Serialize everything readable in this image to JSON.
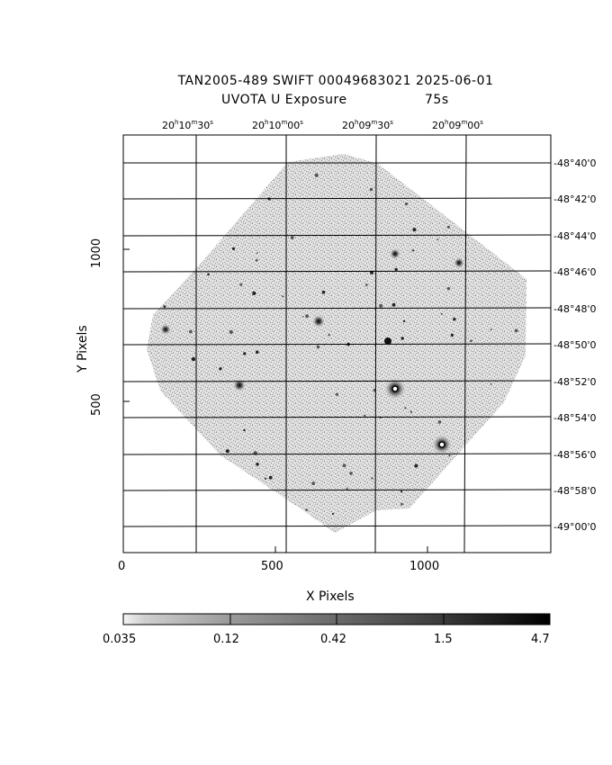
{
  "header": {
    "line1": "TAN2005-489 SWIFT 00049683021 2025-06-01",
    "line2_left": "UVOTA U Exposure",
    "line2_right": "75s"
  },
  "x_axis": {
    "label": "X Pixels",
    "ticks": [
      "0",
      "500",
      "1000"
    ]
  },
  "y_axis": {
    "label": "Y Pixels",
    "ticks": [
      "500",
      "1000"
    ]
  },
  "ra_labels": [
    {
      "h": "20",
      "m": "10",
      "s": "30"
    },
    {
      "h": "20",
      "m": "10",
      "s": "00"
    },
    {
      "h": "20",
      "m": "09",
      "s": "30"
    },
    {
      "h": "20",
      "m": "09",
      "s": "00"
    }
  ],
  "dec_labels": [
    "-48°40'0",
    "-48°42'0",
    "-48°44'0",
    "-48°46'0",
    "-48°48'0",
    "-48°50'0",
    "-48°52'0",
    "-48°54'0",
    "-48°56'0",
    "-48°58'0",
    "-49°00'0"
  ],
  "colorbar": {
    "ticks": [
      "0.035",
      "0.12",
      "0.42",
      "1.5",
      "4.7"
    ]
  },
  "colors": {
    "frame": "#000000",
    "sky_texture": "#a0a0a0",
    "background": "#ffffff"
  }
}
